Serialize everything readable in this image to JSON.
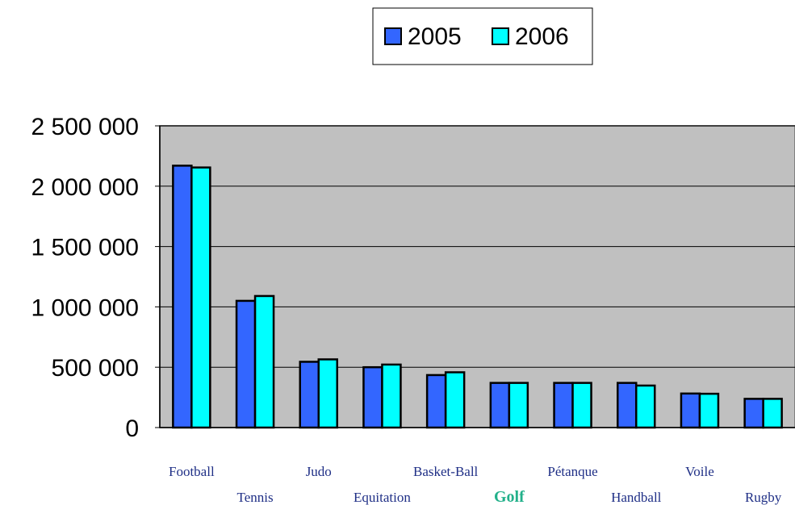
{
  "colors": {
    "series_2005": "#3366FF",
    "series_2006": "#00FFFF",
    "plot_background": "#C0C0C0",
    "label_default": "#1F2F86",
    "label_highlight": "#22B08A"
  },
  "chart_data": {
    "type": "bar",
    "categories": [
      "Football",
      "Tennis",
      "Judo",
      "Equitation",
      "Basket-Ball",
      "Golf",
      "Pétanque",
      "Handball",
      "Voile",
      "Rugby"
    ],
    "highlighted_category": "Golf",
    "series": [
      {
        "name": "2005",
        "values": [
          2170000,
          1050000,
          545000,
          500000,
          435000,
          370000,
          370000,
          370000,
          282000,
          238000
        ]
      },
      {
        "name": "2006",
        "values": [
          2155000,
          1090000,
          565000,
          522000,
          458000,
          370000,
          370000,
          348000,
          280000,
          238000
        ]
      }
    ],
    "ylim": [
      0,
      2500000
    ],
    "yticks": [
      0,
      500000,
      1000000,
      1500000,
      2000000,
      2500000
    ],
    "ytick_labels": [
      "0",
      "500 000",
      "1 000 000",
      "1 500 000",
      "2 000 000",
      "2 500 000"
    ],
    "grid": true,
    "legend_position": "top-right"
  }
}
